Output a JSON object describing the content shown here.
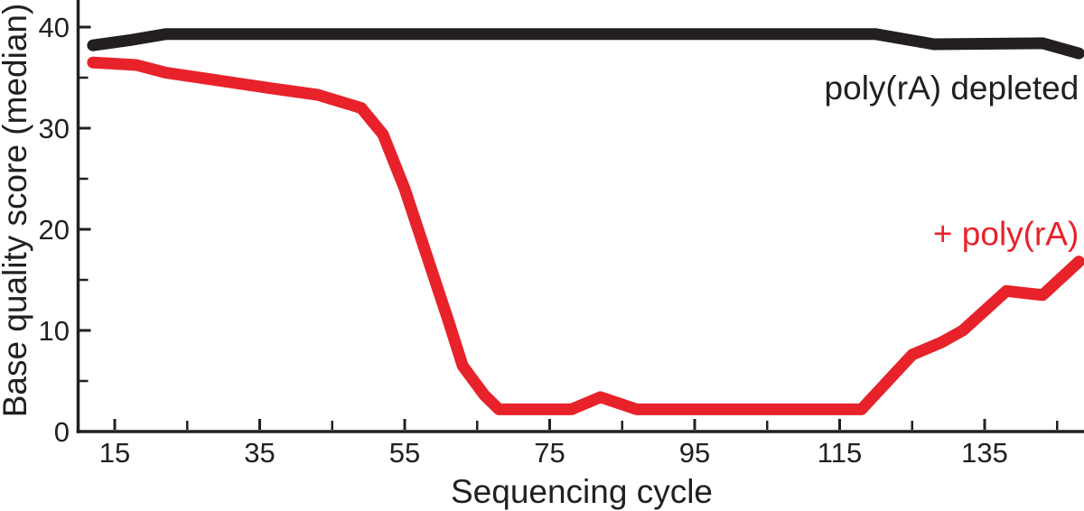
{
  "figure": {
    "background": "#ffffff"
  },
  "chart_data": {
    "type": "line",
    "title": "",
    "xlabel": "Sequencing cycle",
    "ylabel": "Base quality score (median)",
    "grid": false,
    "legend_position": "inline-annotations",
    "axis_color": "#231f20",
    "x_axis": {
      "min": 10,
      "max": 149,
      "major_ticks": [
        15,
        35,
        55,
        75,
        95,
        115,
        135
      ],
      "minor_ticks": [
        25,
        45,
        65,
        85,
        105,
        125,
        145
      ]
    },
    "y_axis": {
      "min": 0,
      "max": 43,
      "major_ticks": [
        0,
        10,
        20,
        30,
        40
      ],
      "minor_ticks": [
        5,
        15,
        25,
        35
      ]
    },
    "series": [
      {
        "name": "poly(rA) depleted",
        "color": "#231f20",
        "points": [
          [
            12,
            38.2
          ],
          [
            17,
            38.7
          ],
          [
            22,
            39.3
          ],
          [
            120,
            39.3
          ],
          [
            128,
            38.3
          ],
          [
            143,
            38.4
          ],
          [
            148,
            37.4
          ]
        ]
      },
      {
        "name": "+ poly(rA)",
        "color": "#e8222a",
        "points": [
          [
            12,
            36.5
          ],
          [
            18,
            36.25
          ],
          [
            22,
            35.5
          ],
          [
            30,
            34.65
          ],
          [
            37,
            33.9
          ],
          [
            43,
            33.3
          ],
          [
            49,
            32
          ],
          [
            52,
            29.4
          ],
          [
            55,
            24
          ],
          [
            58,
            17.5
          ],
          [
            61,
            11
          ],
          [
            63,
            6.5
          ],
          [
            66,
            3.6
          ],
          [
            68,
            2.2
          ],
          [
            78,
            2.2
          ],
          [
            82,
            3.4
          ],
          [
            87,
            2.2
          ],
          [
            118,
            2.2
          ],
          [
            125,
            7.6
          ],
          [
            129,
            8.8
          ],
          [
            132,
            10
          ],
          [
            138,
            13.9
          ],
          [
            143,
            13.5
          ],
          [
            148,
            16.8
          ]
        ]
      }
    ],
    "annotations": [
      {
        "text": "poly(rA) depleted",
        "color": "#231f20",
        "x": 148,
        "y": 34.0,
        "anchor": "end"
      },
      {
        "text": "+ poly(rA)",
        "color": "#e8222a",
        "x": 148,
        "y": 19.6,
        "anchor": "end"
      }
    ]
  }
}
